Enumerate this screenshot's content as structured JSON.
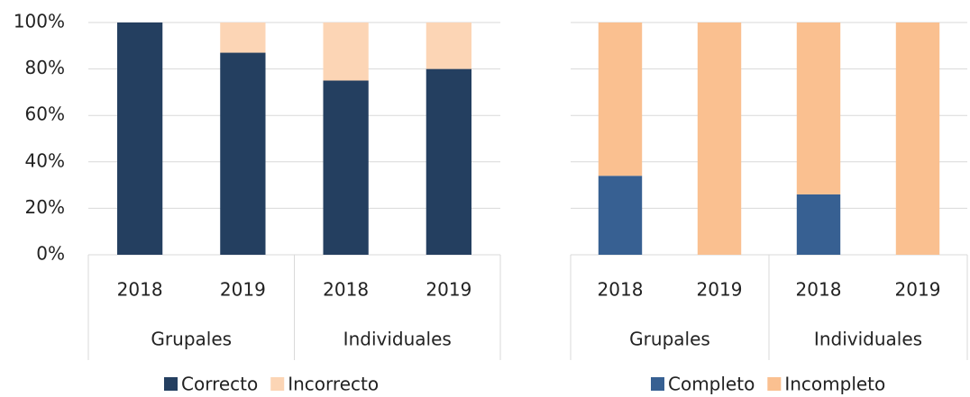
{
  "chart_data": [
    {
      "type": "stacked_bar",
      "categories": [
        "2018",
        "2019",
        "2018",
        "2019"
      ],
      "groups": [
        "Grupales",
        "Individuales"
      ],
      "series": [
        {
          "name": "Correcto",
          "color": "#243f60",
          "values": [
            100,
            87,
            75,
            80
          ]
        },
        {
          "name": "Incorrecto",
          "color": "#fcd5b5",
          "values": [
            0,
            13,
            25,
            20
          ]
        }
      ],
      "ylim": [
        0,
        100
      ],
      "yticks": [
        {
          "value": 0,
          "label": "0%"
        },
        {
          "value": 20,
          "label": "20%"
        },
        {
          "value": 40,
          "label": "40%"
        },
        {
          "value": 60,
          "label": "60%"
        },
        {
          "value": 80,
          "label": "80%"
        },
        {
          "value": 100,
          "label": "100%"
        }
      ],
      "grid": true,
      "legend": "bottom"
    },
    {
      "type": "stacked_bar",
      "categories": [
        "2018",
        "2019",
        "2018",
        "2019"
      ],
      "groups": [
        "Grupales",
        "Individuales"
      ],
      "series": [
        {
          "name": "Completo",
          "color": "#376092",
          "values": [
            34,
            0,
            26,
            0
          ]
        },
        {
          "name": "Incompleto",
          "color": "#fac090",
          "values": [
            66,
            100,
            74,
            100
          ]
        }
      ],
      "ylim": [
        0,
        100
      ],
      "yticks": [
        0,
        20,
        40,
        60,
        80,
        100
      ],
      "grid": true,
      "legend": "bottom"
    }
  ]
}
